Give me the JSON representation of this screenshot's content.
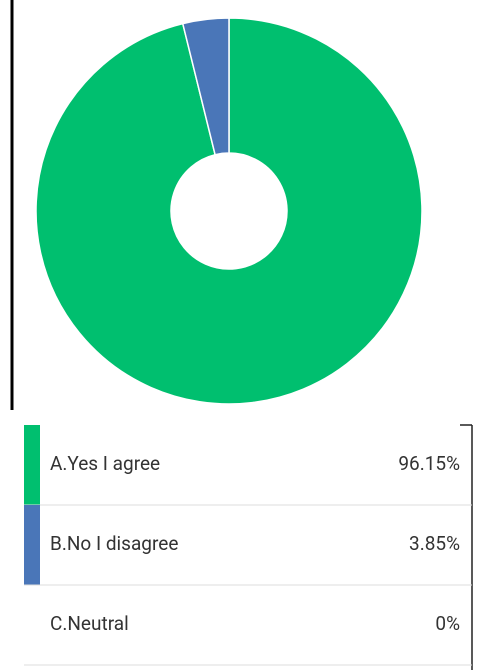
{
  "chart_data": {
    "type": "donut",
    "categories": [
      "A.Yes I agree",
      "B.No I disagree",
      "C.Neutral"
    ],
    "values": [
      96.15,
      3.85,
      0
    ],
    "value_labels": [
      "96.15%",
      "3.85%",
      "0%"
    ],
    "colors": [
      "#00bf6f",
      "#4a76b8",
      null
    ]
  }
}
